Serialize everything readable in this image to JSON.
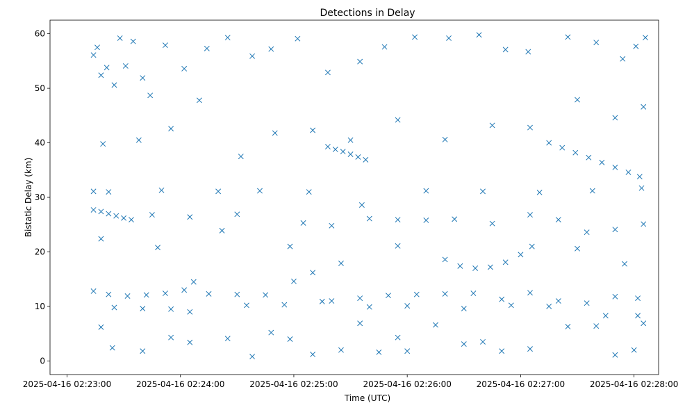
{
  "chart_data": {
    "type": "scatter",
    "title": "Detections in Delay",
    "xlabel": "Time (UTC)",
    "ylabel": "Bistatic Delay (km)",
    "x_axis_type": "datetime",
    "xlim": [
      "2025-04-16 02:22:51",
      "2025-04-16 02:28:13"
    ],
    "ylim": [
      -2.5,
      62.5
    ],
    "xticks": [
      "2025-04-16 02:23:00",
      "2025-04-16 02:24:00",
      "2025-04-16 02:25:00",
      "2025-04-16 02:26:00",
      "2025-04-16 02:27:00",
      "2025-04-16 02:28:00"
    ],
    "yticks": [
      0,
      10,
      20,
      30,
      40,
      50,
      60
    ],
    "grid": false,
    "legend": "none",
    "marker": "x",
    "color": "#1f77b4",
    "series": [
      {
        "points_time_delay": [
          [
            "02:23:14",
            56.1
          ],
          [
            "02:23:16",
            57.5
          ],
          [
            "02:23:21",
            53.8
          ],
          [
            "02:23:28",
            59.2
          ],
          [
            "02:23:35",
            58.6
          ],
          [
            "02:23:18",
            52.4
          ],
          [
            "02:23:25",
            50.6
          ],
          [
            "02:23:31",
            54.1
          ],
          [
            "02:23:40",
            51.9
          ],
          [
            "02:23:44",
            48.7
          ],
          [
            "02:23:52",
            57.9
          ],
          [
            "02:24:02",
            53.6
          ],
          [
            "02:24:14",
            57.3
          ],
          [
            "02:24:25",
            59.3
          ],
          [
            "02:24:38",
            55.9
          ],
          [
            "02:24:48",
            57.2
          ],
          [
            "02:25:02",
            59.1
          ],
          [
            "02:25:18",
            52.9
          ],
          [
            "02:25:35",
            54.9
          ],
          [
            "02:25:48",
            57.6
          ],
          [
            "02:26:04",
            59.4
          ],
          [
            "02:26:22",
            59.2
          ],
          [
            "02:26:38",
            59.8
          ],
          [
            "02:26:52",
            57.1
          ],
          [
            "02:27:04",
            56.7
          ],
          [
            "02:27:25",
            59.4
          ],
          [
            "02:27:40",
            58.4
          ],
          [
            "02:27:54",
            55.4
          ],
          [
            "02:28:06",
            59.3
          ],
          [
            "02:28:01",
            57.7
          ],
          [
            "02:23:19",
            39.8
          ],
          [
            "02:23:38",
            40.5
          ],
          [
            "02:23:55",
            42.6
          ],
          [
            "02:24:10",
            47.8
          ],
          [
            "02:24:32",
            37.5
          ],
          [
            "02:24:50",
            41.8
          ],
          [
            "02:25:10",
            42.3
          ],
          [
            "02:25:30",
            40.5
          ],
          [
            "02:25:55",
            44.2
          ],
          [
            "02:26:20",
            40.6
          ],
          [
            "02:26:45",
            43.2
          ],
          [
            "02:27:05",
            42.8
          ],
          [
            "02:27:30",
            47.9
          ],
          [
            "02:27:50",
            44.6
          ],
          [
            "02:28:05",
            46.6
          ],
          [
            "02:25:18",
            39.3
          ],
          [
            "02:25:22",
            38.8
          ],
          [
            "02:25:26",
            38.4
          ],
          [
            "02:25:30",
            37.9
          ],
          [
            "02:25:34",
            37.4
          ],
          [
            "02:25:38",
            36.9
          ],
          [
            "02:27:15",
            40.0
          ],
          [
            "02:27:22",
            39.1
          ],
          [
            "02:27:29",
            38.2
          ],
          [
            "02:27:36",
            37.3
          ],
          [
            "02:27:43",
            36.4
          ],
          [
            "02:27:50",
            35.5
          ],
          [
            "02:27:57",
            34.6
          ],
          [
            "02:28:03",
            33.8
          ],
          [
            "02:23:14",
            31.1
          ],
          [
            "02:23:22",
            31.0
          ],
          [
            "02:23:50",
            31.3
          ],
          [
            "02:24:20",
            31.1
          ],
          [
            "02:24:42",
            31.2
          ],
          [
            "02:25:08",
            31.0
          ],
          [
            "02:25:36",
            28.6
          ],
          [
            "02:26:10",
            31.2
          ],
          [
            "02:26:40",
            31.1
          ],
          [
            "02:27:10",
            30.9
          ],
          [
            "02:27:38",
            31.2
          ],
          [
            "02:28:04",
            31.7
          ],
          [
            "02:23:14",
            27.7
          ],
          [
            "02:23:18",
            27.4
          ],
          [
            "02:23:22",
            27.0
          ],
          [
            "02:23:26",
            26.6
          ],
          [
            "02:23:30",
            26.2
          ],
          [
            "02:23:34",
            25.9
          ],
          [
            "02:23:45",
            26.8
          ],
          [
            "02:24:05",
            26.4
          ],
          [
            "02:24:30",
            26.9
          ],
          [
            "02:25:05",
            25.3
          ],
          [
            "02:25:20",
            24.8
          ],
          [
            "02:25:40",
            26.1
          ],
          [
            "02:25:55",
            25.9
          ],
          [
            "02:26:10",
            25.8
          ],
          [
            "02:26:25",
            26.0
          ],
          [
            "02:26:45",
            25.2
          ],
          [
            "02:27:05",
            26.8
          ],
          [
            "02:27:20",
            25.9
          ],
          [
            "02:27:35",
            23.6
          ],
          [
            "02:27:50",
            24.1
          ],
          [
            "02:28:05",
            25.1
          ],
          [
            "02:23:18",
            22.4
          ],
          [
            "02:23:48",
            20.8
          ],
          [
            "02:24:22",
            23.9
          ],
          [
            "02:24:58",
            21.0
          ],
          [
            "02:25:25",
            17.9
          ],
          [
            "02:25:55",
            21.1
          ],
          [
            "02:26:20",
            18.6
          ],
          [
            "02:26:28",
            17.4
          ],
          [
            "02:26:36",
            17.0
          ],
          [
            "02:26:44",
            17.2
          ],
          [
            "02:26:52",
            18.1
          ],
          [
            "02:27:00",
            19.5
          ],
          [
            "02:27:06",
            21.0
          ],
          [
            "02:27:30",
            20.6
          ],
          [
            "02:27:55",
            17.8
          ],
          [
            "02:23:14",
            12.8
          ],
          [
            "02:23:22",
            12.2
          ],
          [
            "02:23:32",
            11.9
          ],
          [
            "02:23:42",
            12.1
          ],
          [
            "02:23:52",
            12.4
          ],
          [
            "02:24:02",
            13.0
          ],
          [
            "02:24:07",
            14.5
          ],
          [
            "02:24:15",
            12.3
          ],
          [
            "02:24:30",
            12.2
          ],
          [
            "02:24:45",
            12.1
          ],
          [
            "02:25:00",
            14.6
          ],
          [
            "02:25:10",
            16.2
          ],
          [
            "02:25:20",
            11.0
          ],
          [
            "02:25:35",
            11.5
          ],
          [
            "02:25:50",
            12.0
          ],
          [
            "02:26:05",
            12.2
          ],
          [
            "02:26:20",
            12.3
          ],
          [
            "02:26:35",
            12.4
          ],
          [
            "02:26:50",
            11.3
          ],
          [
            "02:27:05",
            12.5
          ],
          [
            "02:27:20",
            11.0
          ],
          [
            "02:27:35",
            10.6
          ],
          [
            "02:27:50",
            11.8
          ],
          [
            "02:28:02",
            11.5
          ],
          [
            "02:23:25",
            9.8
          ],
          [
            "02:23:40",
            9.6
          ],
          [
            "02:23:55",
            9.5
          ],
          [
            "02:24:05",
            9.0
          ],
          [
            "02:24:35",
            10.2
          ],
          [
            "02:24:55",
            10.3
          ],
          [
            "02:25:15",
            10.9
          ],
          [
            "02:25:40",
            9.9
          ],
          [
            "02:26:00",
            10.1
          ],
          [
            "02:26:30",
            9.6
          ],
          [
            "02:26:55",
            10.2
          ],
          [
            "02:27:15",
            10.0
          ],
          [
            "02:27:45",
            8.3
          ],
          [
            "02:28:02",
            8.3
          ],
          [
            "02:23:18",
            6.2
          ],
          [
            "02:23:24",
            2.4
          ],
          [
            "02:23:40",
            1.8
          ],
          [
            "02:23:55",
            4.3
          ],
          [
            "02:24:05",
            3.4
          ],
          [
            "02:24:25",
            4.1
          ],
          [
            "02:24:38",
            0.8
          ],
          [
            "02:24:58",
            4.0
          ],
          [
            "02:25:10",
            1.2
          ],
          [
            "02:25:25",
            2.0
          ],
          [
            "02:25:35",
            6.9
          ],
          [
            "02:25:45",
            1.6
          ],
          [
            "02:26:00",
            1.8
          ],
          [
            "02:26:15",
            6.6
          ],
          [
            "02:26:30",
            3.1
          ],
          [
            "02:26:50",
            1.8
          ],
          [
            "02:27:05",
            2.2
          ],
          [
            "02:27:25",
            6.3
          ],
          [
            "02:27:50",
            1.1
          ],
          [
            "02:28:00",
            2.0
          ],
          [
            "02:28:05",
            6.9
          ],
          [
            "02:27:40",
            6.4
          ],
          [
            "02:26:40",
            3.5
          ],
          [
            "02:25:55",
            4.3
          ],
          [
            "02:24:48",
            5.2
          ]
        ]
      }
    ]
  }
}
